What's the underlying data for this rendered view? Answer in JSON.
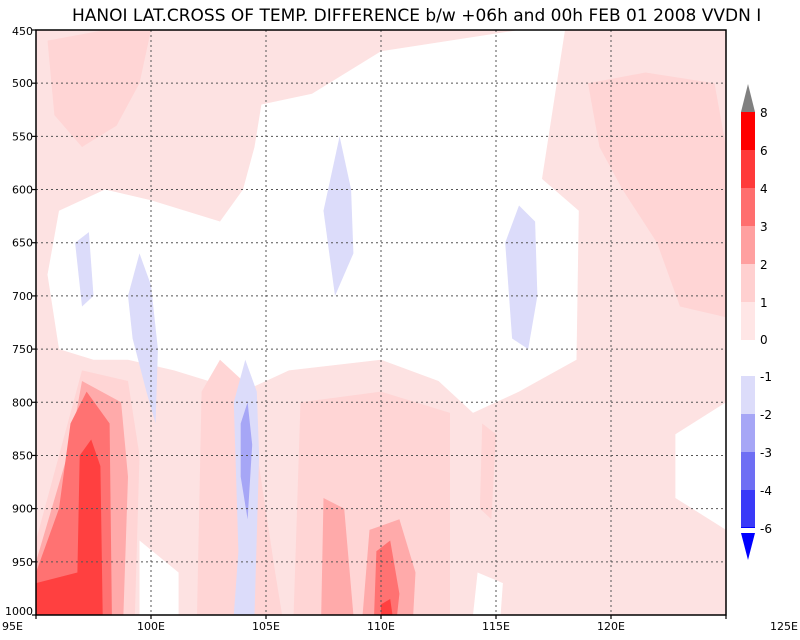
{
  "chart_data": {
    "type": "heatmap",
    "title": "HANOI LAT.CROSS OF TEMP. DIFFERENCE b/w +06h and 00h FEB 01 2008 VVDN I",
    "xlabel": "",
    "ylabel": "",
    "x_range": [
      95,
      125
    ],
    "y_range": [
      450,
      1000
    ],
    "y_inverted": true,
    "x_ticks": [
      95,
      100,
      105,
      110,
      115,
      120,
      125
    ],
    "x_tick_labels": [
      "95E",
      "100E",
      "105E",
      "110E",
      "115E",
      "120E",
      "125E"
    ],
    "y_ticks": [
      450,
      500,
      550,
      600,
      650,
      700,
      750,
      800,
      850,
      900,
      950,
      1000
    ],
    "y_tick_labels": [
      "450",
      "500",
      "550",
      "600",
      "650",
      "700",
      "750",
      "800",
      "850",
      "900",
      "950",
      "1000"
    ],
    "grid": true,
    "legend": "right",
    "positive_bins": [
      {
        "label": "8",
        "color": "#ff0000"
      },
      {
        "label": "6",
        "color": "#ff3a3a"
      },
      {
        "label": "4",
        "color": "#ff6e6e"
      },
      {
        "label": "3",
        "color": "#ffa0a0"
      },
      {
        "label": "2",
        "color": "#ffd0d0"
      },
      {
        "label": "1",
        "color": "#ffe6e6"
      },
      {
        "label": "0",
        "color": "#ffffff"
      }
    ],
    "negative_bins": [
      {
        "label": "-1",
        "color": "#dcdcfa"
      },
      {
        "label": "-2",
        "color": "#a6a6f6"
      },
      {
        "label": "-3",
        "color": "#6e6ef4"
      },
      {
        "label": "-4",
        "color": "#3a3af8"
      },
      {
        "label": "-6",
        "color": "#0000ff"
      }
    ],
    "regions": [
      {
        "level": 1,
        "color": "#fde2e2",
        "lonlat": [
          [
            95,
            450
          ],
          [
            125,
            450
          ],
          [
            125,
            1000
          ],
          [
            95,
            1000
          ]
        ]
      },
      {
        "level": 0,
        "color": "#ffffff",
        "lonlat": [
          [
            104.8,
            520
          ],
          [
            107,
            510
          ],
          [
            110,
            470
          ],
          [
            116,
            450
          ],
          [
            118,
            450
          ],
          [
            117,
            590
          ],
          [
            118.6,
            620
          ],
          [
            118.5,
            760
          ],
          [
            116,
            790
          ],
          [
            114,
            810
          ],
          [
            112.5,
            780
          ],
          [
            110,
            760
          ],
          [
            106,
            770
          ],
          [
            104,
            790
          ],
          [
            101,
            770
          ],
          [
            99,
            760
          ],
          [
            97.5,
            760
          ],
          [
            96,
            750
          ],
          [
            95.5,
            680
          ],
          [
            96,
            620
          ],
          [
            98,
            600
          ],
          [
            100,
            610
          ],
          [
            103,
            630
          ],
          [
            104,
            600
          ],
          [
            104.5,
            560
          ]
        ]
      },
      {
        "level": 0,
        "color": "#ffffff",
        "lonlat": [
          [
            99.5,
            930
          ],
          [
            101.2,
            960
          ],
          [
            101.2,
            1000
          ],
          [
            99.5,
            1000
          ]
        ]
      },
      {
        "level": 0,
        "color": "#ffffff",
        "lonlat": [
          [
            122.8,
            830
          ],
          [
            125,
            800
          ],
          [
            125,
            920
          ],
          [
            122.8,
            890
          ]
        ]
      },
      {
        "level": 0,
        "color": "#ffffff",
        "lonlat": [
          [
            114.2,
            960
          ],
          [
            115.3,
            970
          ],
          [
            115.2,
            1000
          ],
          [
            114,
            1000
          ]
        ]
      },
      {
        "level": 1,
        "color": "#ffd5d5",
        "lonlat": [
          [
            95,
            930
          ],
          [
            96,
            850
          ],
          [
            97,
            770
          ],
          [
            99,
            780
          ],
          [
            99.5,
            850
          ],
          [
            99.3,
            1000
          ],
          [
            95,
            1000
          ]
        ]
      },
      {
        "level": 1,
        "color": "#ffd5d5",
        "lonlat": [
          [
            102.2,
            790
          ],
          [
            103,
            760
          ],
          [
            104,
            780
          ],
          [
            104.7,
            860
          ],
          [
            105.4,
            960
          ],
          [
            105.7,
            1000
          ],
          [
            102,
            1000
          ]
        ]
      },
      {
        "level": 1,
        "color": "#ffd5d5",
        "lonlat": [
          [
            106.5,
            800
          ],
          [
            110,
            790
          ],
          [
            113,
            810
          ],
          [
            113,
            1000
          ],
          [
            106.2,
            1000
          ]
        ]
      },
      {
        "level": 1,
        "color": "#ffd5d5",
        "lonlat": [
          [
            95.5,
            460
          ],
          [
            98,
            450
          ],
          [
            100,
            450
          ],
          [
            99.5,
            500
          ],
          [
            98.5,
            540
          ],
          [
            97,
            560
          ],
          [
            95.8,
            530
          ]
        ]
      },
      {
        "level": 1,
        "color": "#ffd5d5",
        "lonlat": [
          [
            119,
            500
          ],
          [
            121.5,
            490
          ],
          [
            124.5,
            500
          ],
          [
            125,
            560
          ],
          [
            125,
            720
          ],
          [
            123,
            710
          ],
          [
            122,
            650
          ],
          [
            120.5,
            600
          ],
          [
            119.5,
            560
          ]
        ]
      },
      {
        "level": 1,
        "color": "#ffd5d5",
        "lonlat": [
          [
            114.4,
            820
          ],
          [
            115,
            830
          ],
          [
            114.8,
            910
          ],
          [
            114.3,
            900
          ]
        ]
      },
      {
        "level": 2,
        "color": "#ffaaaa",
        "lonlat": [
          [
            95,
            950
          ],
          [
            96.5,
            840
          ],
          [
            97,
            780
          ],
          [
            98.7,
            800
          ],
          [
            99,
            870
          ],
          [
            98.8,
            1000
          ],
          [
            95,
            1000
          ]
        ]
      },
      {
        "level": 2,
        "color": "#ffaaaa",
        "lonlat": [
          [
            107.5,
            890
          ],
          [
            108.4,
            900
          ],
          [
            108.8,
            1000
          ],
          [
            107.4,
            1000
          ]
        ]
      },
      {
        "level": 2,
        "color": "#ffaaaa",
        "lonlat": [
          [
            109.5,
            920
          ],
          [
            110.8,
            910
          ],
          [
            111.5,
            960
          ],
          [
            111.4,
            1000
          ],
          [
            109.2,
            1000
          ]
        ]
      },
      {
        "level": 3,
        "color": "#ff7272",
        "lonlat": [
          [
            95,
            960
          ],
          [
            96,
            900
          ],
          [
            96.5,
            820
          ],
          [
            97.2,
            790
          ],
          [
            98.2,
            820
          ],
          [
            98.3,
            1000
          ],
          [
            95,
            1000
          ]
        ]
      },
      {
        "level": 3,
        "color": "#ff7272",
        "lonlat": [
          [
            109.8,
            940
          ],
          [
            110.4,
            930
          ],
          [
            110.8,
            980
          ],
          [
            110.7,
            1000
          ],
          [
            109.7,
            1000
          ]
        ]
      },
      {
        "level": 4,
        "color": "#ff4040",
        "lonlat": [
          [
            95,
            970
          ],
          [
            96.8,
            960
          ],
          [
            96.9,
            850
          ],
          [
            97.4,
            835
          ],
          [
            97.8,
            860
          ],
          [
            97.9,
            1000
          ],
          [
            95,
            1000
          ]
        ]
      },
      {
        "level": 4,
        "color": "#ff4040",
        "lonlat": [
          [
            110,
            990
          ],
          [
            110.4,
            985
          ],
          [
            110.5,
            1000
          ],
          [
            110,
            1000
          ]
        ]
      },
      {
        "level": -1,
        "color": "#dcdcfa",
        "lonlat": [
          [
            96.7,
            650
          ],
          [
            97.3,
            640
          ],
          [
            97.5,
            700
          ],
          [
            97,
            710
          ]
        ]
      },
      {
        "level": -1,
        "color": "#dcdcfa",
        "lonlat": [
          [
            99,
            700
          ],
          [
            99.5,
            660
          ],
          [
            100,
            690
          ],
          [
            100.3,
            750
          ],
          [
            100.2,
            820
          ],
          [
            99.8,
            790
          ],
          [
            99.2,
            740
          ]
        ]
      },
      {
        "level": -1,
        "color": "#dcdcfa",
        "lonlat": [
          [
            103.6,
            800
          ],
          [
            104.1,
            760
          ],
          [
            104.6,
            790
          ],
          [
            104.7,
            850
          ],
          [
            104.5,
            1000
          ],
          [
            103.6,
            1000
          ],
          [
            103.8,
            940
          ]
        ]
      },
      {
        "level": -1,
        "color": "#dcdcfa",
        "lonlat": [
          [
            107.5,
            620
          ],
          [
            108.2,
            550
          ],
          [
            108.7,
            600
          ],
          [
            108.8,
            660
          ],
          [
            108,
            700
          ]
        ]
      },
      {
        "level": -1,
        "color": "#dcdcfa",
        "lonlat": [
          [
            115.4,
            650
          ],
          [
            116,
            615
          ],
          [
            116.7,
            630
          ],
          [
            116.8,
            700
          ],
          [
            116.4,
            750
          ],
          [
            115.7,
            740
          ]
        ]
      },
      {
        "level": -2,
        "color": "#a6a6f6",
        "lonlat": [
          [
            103.9,
            820
          ],
          [
            104.2,
            800
          ],
          [
            104.4,
            840
          ],
          [
            104.2,
            910
          ],
          [
            103.9,
            870
          ]
        ]
      }
    ]
  }
}
